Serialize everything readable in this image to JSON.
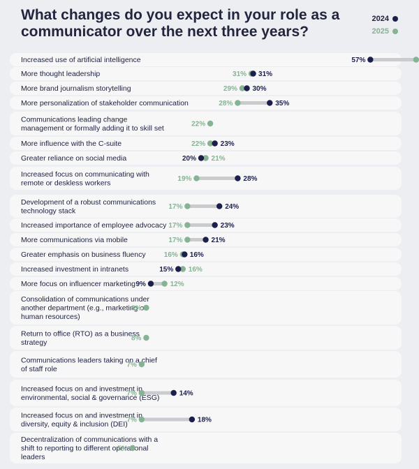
{
  "header": {
    "title": "What changes do you expect in your role as a communicator over the next three years?"
  },
  "colors": {
    "2024": "#1c1f4a",
    "2025": "#86b394",
    "connector": "#c9cbcf",
    "band": "#f7f7f8"
  },
  "chart_data": {
    "type": "dumbbell",
    "title": "What changes do you expect in your role as a communicator over the next three years?",
    "legend": [
      "2024",
      "2025"
    ],
    "legend_position": "top-right",
    "xlim": [
      0,
      70
    ],
    "series": [
      {
        "name": "2024",
        "values": [
          57,
          31,
          30,
          35,
          null,
          23,
          20,
          28,
          24,
          23,
          21,
          16,
          15,
          9,
          null,
          null,
          null,
          14,
          18,
          null
        ]
      },
      {
        "name": "2025",
        "values": [
          67,
          31,
          29,
          28,
          22,
          22,
          21,
          19,
          17,
          17,
          17,
          16,
          16,
          12,
          8,
          8,
          7,
          7,
          7,
          5
        ]
      }
    ],
    "categories": [
      [
        "Increased use of artificial intelligence"
      ],
      [
        "More thought leadership"
      ],
      [
        "More brand journalism storytelling"
      ],
      [
        "More personalization of stakeholder communication"
      ],
      [
        "Communications leading change",
        "management or formally adding it to skill set"
      ],
      [
        "More influence with the C-suite"
      ],
      [
        "Greater reliance on social media"
      ],
      [
        "Increased focus on communicating with",
        "remote or deskless workers"
      ],
      [
        "Development of a robust communications",
        "technology stack"
      ],
      [
        "Increased importance of employee advocacy"
      ],
      [
        "More communications via mobile"
      ],
      [
        "Greater emphasis on business fluency"
      ],
      [
        "Increased investment in intranets"
      ],
      [
        "More focus on influencer marketing"
      ],
      [
        "Consolidation of communications under",
        "another department (e.g., marketing or",
        "human resources)"
      ],
      [
        "Return to office (RTO) as a business",
        "strategy"
      ],
      [
        "Communications leaders taking on a chief",
        "of staff role"
      ],
      [
        "Increased focus on and investment in",
        "environmental, social & governance (ESG)"
      ],
      [
        "Increased focus on and investment in",
        "diversity, equity & inclusion (DEI)"
      ],
      [
        "Decentralization of communications with a",
        "shift to reporting to different operational",
        "leaders"
      ]
    ]
  }
}
